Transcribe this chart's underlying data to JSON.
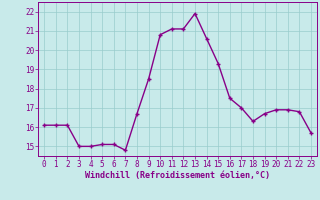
{
  "hours": [
    0,
    1,
    2,
    3,
    4,
    5,
    6,
    7,
    8,
    9,
    10,
    11,
    12,
    13,
    14,
    15,
    16,
    17,
    18,
    19,
    20,
    21,
    22,
    23
  ],
  "values": [
    16.1,
    16.1,
    16.1,
    15.0,
    15.0,
    15.1,
    15.1,
    14.8,
    16.7,
    18.5,
    20.8,
    21.1,
    21.1,
    21.9,
    20.6,
    19.3,
    17.5,
    17.0,
    16.3,
    16.7,
    16.9,
    16.9,
    16.8,
    15.7
  ],
  "line_color": "#880088",
  "marker": "+",
  "marker_size": 3,
  "bg_color": "#c8eaea",
  "grid_color": "#99cccc",
  "xlabel": "Windchill (Refroidissement éolien,°C)",
  "xlim": [
    -0.5,
    23.5
  ],
  "ylim": [
    14.5,
    22.5
  ],
  "yticks": [
    15,
    16,
    17,
    18,
    19,
    20,
    21,
    22
  ],
  "xticks": [
    0,
    1,
    2,
    3,
    4,
    5,
    6,
    7,
    8,
    9,
    10,
    11,
    12,
    13,
    14,
    15,
    16,
    17,
    18,
    19,
    20,
    21,
    22,
    23
  ],
  "xlabel_fontsize": 6.0,
  "tick_fontsize": 5.5,
  "line_width": 1.0,
  "label_color": "#880088",
  "spine_color": "#880088"
}
